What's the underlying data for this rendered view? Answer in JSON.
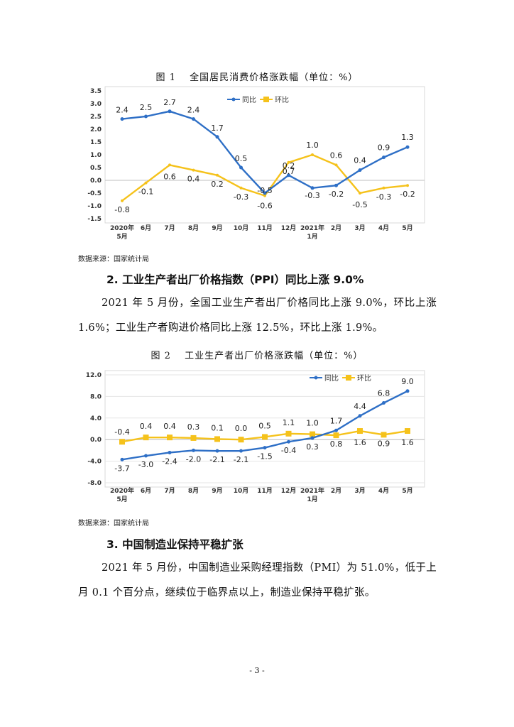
{
  "figure1": {
    "title": "图 1　 全国居民消费价格涨跌幅（单位：%）",
    "source": "数据来源：国家统计局",
    "chart_data": {
      "type": "line",
      "categories": [
        "2020年\n5月",
        "6月",
        "7月",
        "8月",
        "9月",
        "10月",
        "11月",
        "12月",
        "2021年\n1月",
        "2月",
        "3月",
        "4月",
        "5月"
      ],
      "ylim": [
        -1.5,
        3.5
      ],
      "yticks": [
        "3.5",
        "3.0",
        "2.5",
        "2.0",
        "1.5",
        "1.0",
        "0.5",
        "0.0",
        "-0.5",
        "-1.0",
        "-1.5"
      ],
      "ytick_values": [
        3.5,
        3.0,
        2.5,
        2.0,
        1.5,
        1.0,
        0.5,
        0.0,
        -0.5,
        -1.0,
        -1.5
      ],
      "legend": "top-center",
      "series": [
        {
          "name": "同比",
          "color": "#2E6FC6",
          "values": [
            2.4,
            2.5,
            2.7,
            2.4,
            1.7,
            0.5,
            -0.5,
            0.2,
            -0.3,
            -0.2,
            0.4,
            0.9,
            1.3
          ],
          "labels": [
            "2.4",
            "2.5",
            "2.7",
            "2.4",
            "1.7",
            "0.5",
            "-0.5",
            "0.2",
            "-0.3",
            "-0.2",
            "0.4",
            "0.9",
            "1.3"
          ]
        },
        {
          "name": "环比",
          "color": "#F5C21B",
          "values": [
            -0.8,
            -0.1,
            0.6,
            0.4,
            0.2,
            -0.3,
            -0.6,
            0.7,
            1.0,
            0.6,
            -0.5,
            -0.3,
            -0.2
          ],
          "labels": [
            "-0.8",
            "-0.1",
            "0.6",
            "0.4",
            "0.2",
            "-0.3",
            "-0.6",
            "0.7",
            "1.0",
            "0.6",
            "-0.5",
            "-0.3",
            "-0.2"
          ]
        }
      ]
    }
  },
  "section2": {
    "heading": "2. 工业生产者出厂价格指数（PPI）同比上涨 9.0%",
    "paragraph": "2021 年 5 月份，全国工业生产者出厂价格同比上涨 9.0%，环比上涨 1.6%；工业生产者购进价格同比上涨 12.5%，环比上涨 1.9%。"
  },
  "figure2": {
    "title": "图 2　 工业生产者出厂价格涨跌幅（单位：%）",
    "source": "数据来源：国家统计局",
    "chart_data": {
      "type": "line",
      "categories": [
        "2020年\n5月",
        "6月",
        "7月",
        "8月",
        "9月",
        "10月",
        "11月",
        "12月",
        "2021年\n1月",
        "2月",
        "3月",
        "4月",
        "5月"
      ],
      "ylim": [
        -8.0,
        12.0
      ],
      "yticks": [
        "12.0",
        "8.0",
        "4.0",
        "0.0",
        "-4.0",
        "-8.0"
      ],
      "ytick_values": [
        12.0,
        8.0,
        4.0,
        0.0,
        -4.0,
        -8.0
      ],
      "legend": "top-right",
      "series": [
        {
          "name": "同比",
          "color": "#2E6FC6",
          "values": [
            -3.7,
            -3.0,
            -2.4,
            -2.0,
            -2.1,
            -2.1,
            -1.5,
            -0.4,
            0.3,
            1.7,
            4.4,
            6.8,
            9.0
          ],
          "labels": [
            "-3.7",
            "-3.0",
            "-2.4",
            "-2.0",
            "-2.1",
            "-2.1",
            "-1.5",
            "-0.4",
            "0.3",
            "1.7",
            "4.4",
            "6.8",
            "9.0"
          ]
        },
        {
          "name": "环比",
          "color": "#F5C21B",
          "values": [
            -0.4,
            0.4,
            0.4,
            0.3,
            0.1,
            0.0,
            0.5,
            1.1,
            1.0,
            0.8,
            1.6,
            0.9,
            1.6
          ],
          "labels": [
            "-0.4",
            "0.4",
            "0.4",
            "0.3",
            "0.1",
            "0.0",
            "0.5",
            "1.1",
            "1.0",
            "0.8",
            "1.6",
            "0.9",
            "1.6"
          ]
        }
      ]
    }
  },
  "section3": {
    "heading": "3. 中国制造业保持平稳扩张",
    "paragraph": "2021 年 5 月份，中国制造业采购经理指数（PMI）为 51.0%，低于上月 0.1 个百分点，继续位于临界点以上，制造业保持平稳扩张。"
  },
  "page_number": "- 3 -"
}
